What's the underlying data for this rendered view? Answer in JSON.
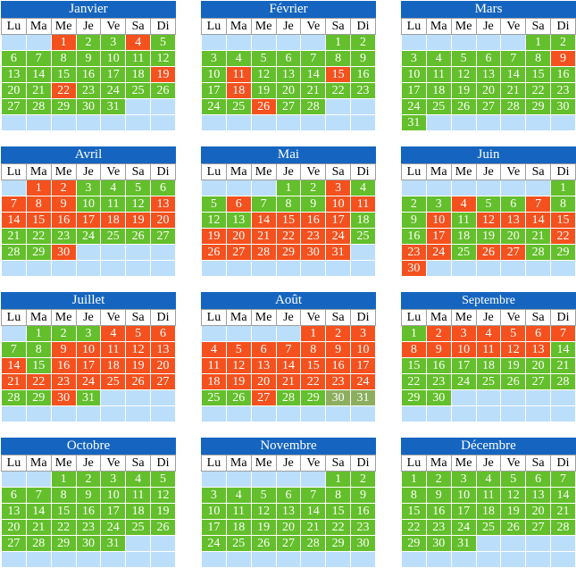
{
  "weekdays": [
    "Lu",
    "Ma",
    "Me",
    "Je",
    "Ve",
    "Sa",
    "Di"
  ],
  "months": [
    {
      "name": "Janvier",
      "start": 2,
      "days": 31,
      "red": [
        1,
        4,
        19,
        22
      ],
      "olive": []
    },
    {
      "name": "Février",
      "start": 5,
      "days": 28,
      "red": [
        11,
        15,
        18,
        26
      ],
      "olive": []
    },
    {
      "name": "Mars",
      "start": 5,
      "days": 31,
      "red": [
        9
      ],
      "olive": []
    },
    {
      "name": "Avril",
      "start": 1,
      "days": 30,
      "red": [
        1,
        2,
        7,
        8,
        9,
        13,
        14,
        15,
        16,
        17,
        18,
        19,
        20,
        30
      ],
      "olive": []
    },
    {
      "name": "Mai",
      "start": 3,
      "days": 31,
      "red": [
        3,
        6,
        10,
        11,
        14,
        15,
        16,
        17,
        19,
        20,
        21,
        22,
        23,
        24,
        26,
        27,
        28,
        29,
        30,
        31
      ],
      "olive": []
    },
    {
      "name": "Juin",
      "start": 6,
      "days": 30,
      "red": [
        4,
        7,
        10,
        12,
        13,
        14,
        15,
        17,
        22,
        23,
        24,
        26,
        27,
        30
      ],
      "olive": []
    },
    {
      "name": "Juillet",
      "start": 1,
      "days": 31,
      "red": [
        4,
        5,
        6,
        9,
        10,
        11,
        12,
        13,
        14,
        16,
        17,
        18,
        19,
        20,
        21,
        22,
        23,
        24,
        25,
        26,
        27,
        30
      ],
      "olive": []
    },
    {
      "name": "Août",
      "start": 4,
      "days": 31,
      "red": [
        1,
        2,
        3,
        4,
        5,
        6,
        7,
        8,
        9,
        10,
        11,
        12,
        13,
        14,
        15,
        16,
        17,
        18,
        19,
        20,
        21,
        22,
        23,
        24,
        27
      ],
      "olive": [
        30,
        31
      ]
    },
    {
      "name": "Septembre",
      "start": 0,
      "days": 30,
      "red": [
        2,
        3,
        4,
        5,
        6,
        7,
        8,
        9,
        10,
        11,
        12,
        13
      ],
      "olive": []
    },
    {
      "name": "Octobre",
      "start": 2,
      "days": 31,
      "red": [],
      "olive": []
    },
    {
      "name": "Novembre",
      "start": 5,
      "days": 30,
      "red": [],
      "olive": []
    },
    {
      "name": "Décembre",
      "start": 0,
      "days": 31,
      "red": [],
      "olive": []
    }
  ],
  "colors": {
    "green": "#63bf2b",
    "red": "#f4511e",
    "empty": "#bbdefb",
    "olive": "#8cae5e",
    "header": "#1565c0"
  }
}
